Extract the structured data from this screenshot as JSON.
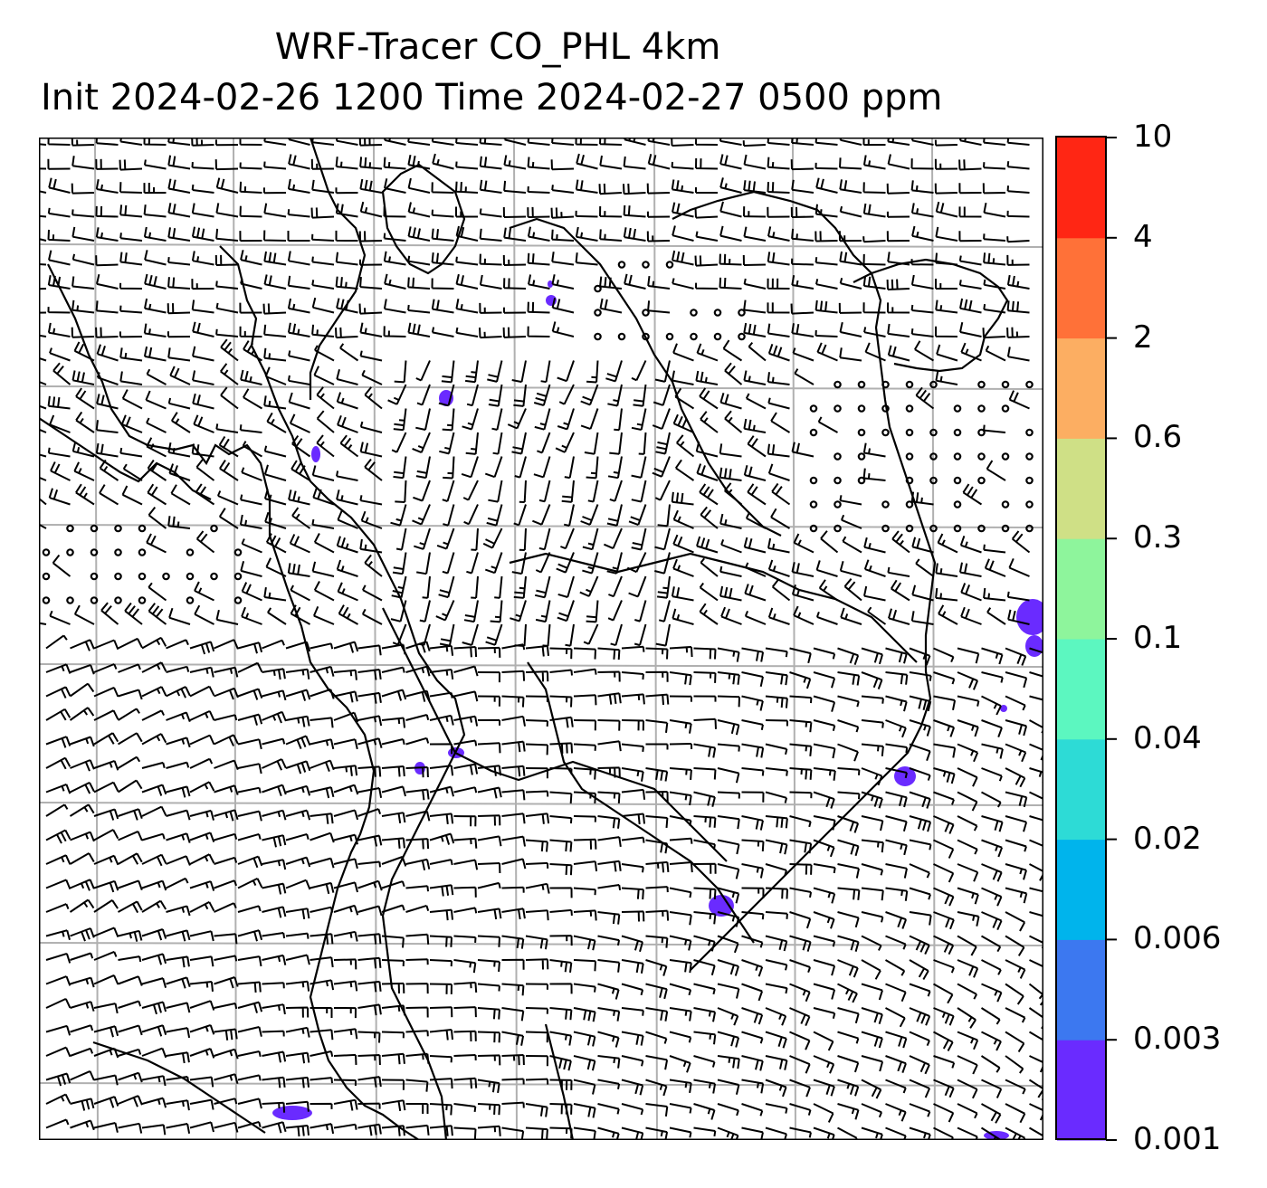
{
  "title": {
    "line1": "WRF-Tracer CO_PHL 4km",
    "line2": "Init 2024-02-26 1200 Time 2024-02-27 0500 ppm"
  },
  "colorbar": {
    "levels": [
      "0.001",
      "0.003",
      "0.006",
      "0.02",
      "0.04",
      "0.1",
      "0.3",
      "0.6",
      "2",
      "4",
      "10"
    ],
    "colors": [
      "#6a2bff",
      "#3c78f0",
      "#00b4ec",
      "#2ddbd6",
      "#5cf7c0",
      "#8ef59c",
      "#cfe086",
      "#fcae62",
      "#ff7138",
      "#ff2614"
    ]
  },
  "map": {
    "gridline_color": "#b0b0b0",
    "tracer_color": "#6a2bff",
    "barb_color": "#000000"
  }
}
